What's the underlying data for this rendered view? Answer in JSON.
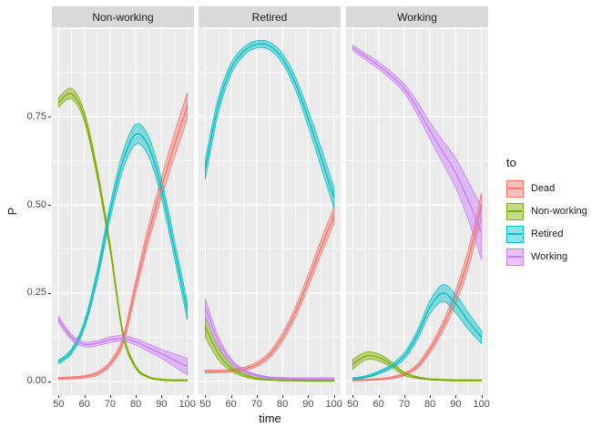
{
  "axes": {
    "x_title": "time",
    "y_title": "P"
  },
  "legend": {
    "title": "to",
    "entries": [
      {
        "label": "Dead",
        "color": "#F8766D"
      },
      {
        "label": "Non-working",
        "color": "#7CAE00"
      },
      {
        "label": "Retired",
        "color": "#00BFC4"
      },
      {
        "label": "Working",
        "color": "#C77CFF"
      }
    ]
  },
  "theme": {
    "panel_bg": "#EBEBEB",
    "strip_bg": "#D9D9D9",
    "grid": "#FFFFFF",
    "axis_text": "#4D4D4D",
    "text": "#1A1A1A",
    "tick": "#333333"
  },
  "chart_data": {
    "type": "line",
    "subtype": "faceted-ribbon-confidence-bands",
    "facets": [
      "Non-working",
      "Retired",
      "Working"
    ],
    "legend_title": "to",
    "xlabel": "time",
    "ylabel": "P",
    "x": [
      50,
      55,
      60,
      65,
      70,
      75,
      80,
      85,
      90,
      95,
      100
    ],
    "x_ticks": [
      50,
      60,
      70,
      80,
      90,
      100
    ],
    "x_minor": [
      55,
      65,
      75,
      85,
      95
    ],
    "y_grid": [
      0,
      0.25,
      0.5,
      0.75,
      1
    ],
    "y_minor": [
      0.125,
      0.375,
      0.625,
      0.875
    ],
    "y_ticks": [
      {
        "v": 0,
        "label": "0.00"
      },
      {
        "v": 0.25,
        "label": "0.25"
      },
      {
        "v": 0.5,
        "label": "0.50"
      },
      {
        "v": 0.75,
        "label": "0.75"
      }
    ],
    "xlim": [
      47.4,
      102.6
    ],
    "ylim": [
      -0.039,
      1.003
    ],
    "grid": true,
    "legend_position": "right",
    "series_colors": {
      "Dead": "#F8766D",
      "Non-working": "#7CAE00",
      "Retired": "#00BFC4",
      "Working": "#C77CFF"
    },
    "panels": [
      {
        "facet": "Non-working",
        "series": [
          {
            "name": "Dead",
            "mid": [
              0.008,
              0.01,
              0.013,
              0.022,
              0.05,
              0.115,
              0.27,
              0.42,
              0.55,
              0.67,
              0.78
            ],
            "half_band": [
              0.003,
              0.003,
              0.004,
              0.005,
              0.007,
              0.012,
              0.018,
              0.024,
              0.029,
              0.034,
              0.038
            ]
          },
          {
            "name": "Non-working",
            "mid": [
              0.79,
              0.815,
              0.75,
              0.59,
              0.38,
              0.135,
              0.04,
              0.012,
              0.005,
              0.003,
              0.003
            ],
            "half_band": [
              0.013,
              0.015,
              0.014,
              0.013,
              0.012,
              0.008,
              0.004,
              0.002,
              0.002,
              0.002,
              0.002
            ]
          },
          {
            "name": "Retired",
            "mid": [
              0.055,
              0.085,
              0.16,
              0.3,
              0.48,
              0.625,
              0.7,
              0.665,
              0.545,
              0.375,
              0.2
            ],
            "half_band": [
              0.005,
              0.007,
              0.011,
              0.016,
              0.021,
              0.025,
              0.028,
              0.028,
              0.027,
              0.026,
              0.025
            ]
          },
          {
            "name": "Working",
            "mid": [
              0.175,
              0.125,
              0.105,
              0.108,
              0.118,
              0.122,
              0.112,
              0.095,
              0.078,
              0.06,
              0.042
            ],
            "half_band": [
              0.009,
              0.008,
              0.007,
              0.007,
              0.008,
              0.008,
              0.009,
              0.011,
              0.013,
              0.018,
              0.024
            ]
          }
        ]
      },
      {
        "facet": "Retired",
        "series": [
          {
            "name": "Dead",
            "mid": [
              0.028,
              0.028,
              0.03,
              0.035,
              0.048,
              0.075,
              0.125,
              0.195,
              0.285,
              0.38,
              0.47
            ],
            "half_band": [
              0.004,
              0.004,
              0.004,
              0.005,
              0.006,
              0.009,
              0.012,
              0.015,
              0.018,
              0.021,
              0.023
            ]
          },
          {
            "name": "Non-working",
            "mid": [
              0.155,
              0.08,
              0.038,
              0.018,
              0.008,
              0.005,
              0.003,
              0.003,
              0.002,
              0.002,
              0.002
            ],
            "half_band": [
              0.03,
              0.018,
              0.009,
              0.005,
              0.003,
              0.002,
              0.002,
              0.002,
              0.002,
              0.002,
              0.002
            ]
          },
          {
            "name": "Retired",
            "mid": [
              0.6,
              0.78,
              0.885,
              0.935,
              0.955,
              0.95,
              0.915,
              0.845,
              0.745,
              0.635,
              0.52
            ],
            "half_band": [
              0.028,
              0.022,
              0.016,
              0.012,
              0.01,
              0.011,
              0.014,
              0.018,
              0.023,
              0.027,
              0.03
            ]
          },
          {
            "name": "Working",
            "mid": [
              0.21,
              0.115,
              0.058,
              0.03,
              0.017,
              0.011,
              0.009,
              0.008,
              0.008,
              0.008,
              0.008
            ],
            "half_band": [
              0.025,
              0.014,
              0.007,
              0.004,
              0.003,
              0.002,
              0.002,
              0.002,
              0.002,
              0.002,
              0.002
            ]
          }
        ]
      },
      {
        "facet": "Working",
        "series": [
          {
            "name": "Dead",
            "mid": [
              0.003,
              0.004,
              0.006,
              0.01,
              0.02,
              0.042,
              0.09,
              0.155,
              0.24,
              0.35,
              0.5
            ],
            "half_band": [
              0.002,
              0.002,
              0.002,
              0.003,
              0.004,
              0.006,
              0.01,
              0.014,
              0.02,
              0.027,
              0.034
            ]
          },
          {
            "name": "Non-working",
            "mid": [
              0.048,
              0.072,
              0.068,
              0.048,
              0.022,
              0.011,
              0.006,
              0.004,
              0.003,
              0.003,
              0.003
            ],
            "half_band": [
              0.014,
              0.011,
              0.01,
              0.008,
              0.005,
              0.003,
              0.002,
              0.002,
              0.002,
              0.002,
              0.002
            ]
          },
          {
            "name": "Retired",
            "mid": [
              0.007,
              0.013,
              0.025,
              0.042,
              0.072,
              0.13,
              0.21,
              0.25,
              0.22,
              0.17,
              0.125
            ],
            "half_band": [
              0.003,
              0.003,
              0.004,
              0.006,
              0.009,
              0.013,
              0.018,
              0.024,
              0.026,
              0.023,
              0.018
            ]
          },
          {
            "name": "Working",
            "mid": [
              0.945,
              0.92,
              0.895,
              0.865,
              0.83,
              0.775,
              0.71,
              0.65,
              0.59,
              0.51,
              0.42
            ],
            "half_band": [
              0.008,
              0.009,
              0.01,
              0.011,
              0.013,
              0.018,
              0.024,
              0.032,
              0.042,
              0.055,
              0.075
            ]
          }
        ]
      }
    ]
  }
}
